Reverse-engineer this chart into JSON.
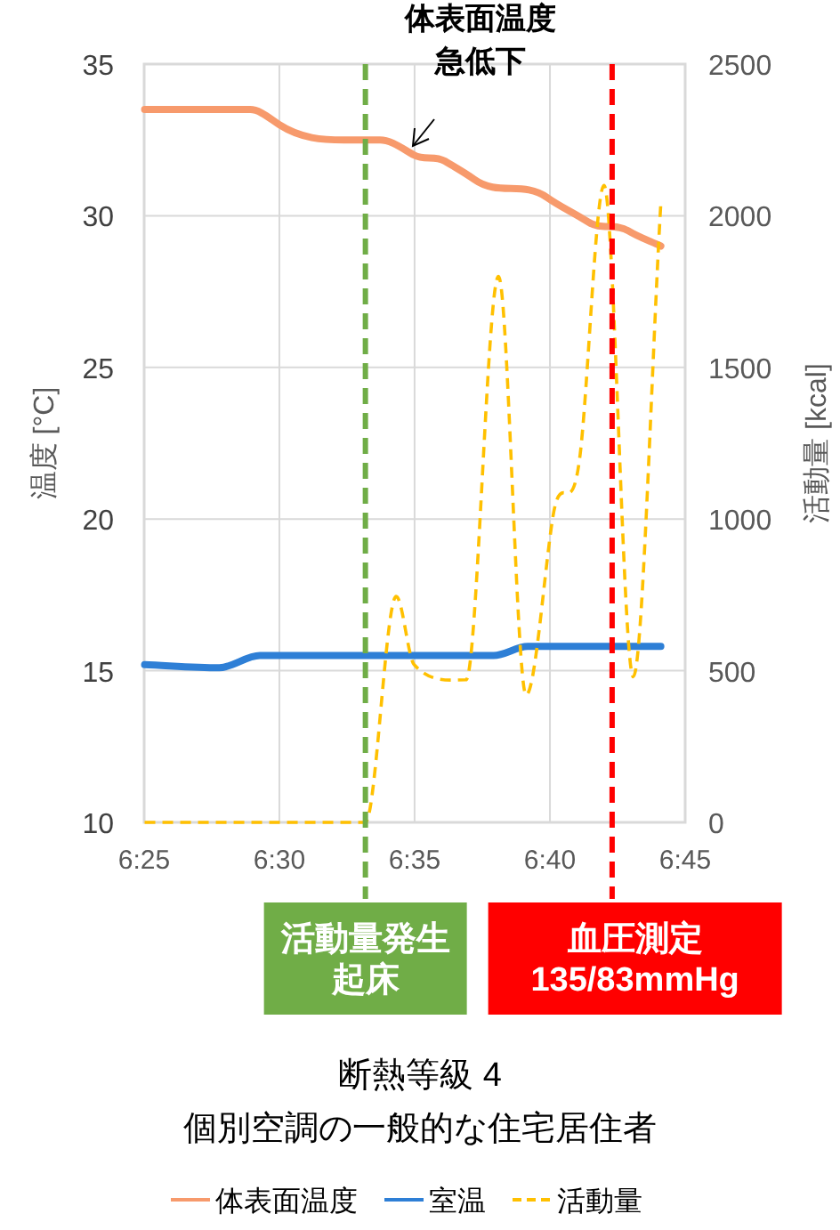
{
  "chart_data": {
    "type": "line",
    "title": "断熱等級 4",
    "subtitle": "個別空調の一般的な住宅居住者",
    "ylabel": "温度 [°C]",
    "y2label": "活動量 [kcal]",
    "series": [
      {
        "name": "体表面温度",
        "color": "#f79a6c",
        "x": [
          6.417,
          6.482,
          6.5,
          6.54,
          6.562,
          6.583,
          6.602,
          6.62,
          6.665,
          6.69,
          6.715,
          6.735
        ],
        "values": [
          33.5,
          33.5,
          33.0,
          32.5,
          32.5,
          32.0,
          31.8,
          31.2,
          30.6,
          29.8,
          29.5,
          29.0
        ]
      },
      {
        "name": "室温",
        "color": "#2e7fd6",
        "x": [
          6.417,
          6.463,
          6.488,
          6.632,
          6.653,
          6.735
        ],
        "values": [
          15.2,
          15.1,
          15.5,
          15.5,
          15.8,
          15.8
        ]
      },
      {
        "name": "活動量",
        "color": "#ffc000",
        "axis": "y2",
        "line_style": "dashed",
        "x": [
          6.417,
          6.54,
          6.553,
          6.572,
          6.583,
          6.615,
          6.635,
          6.652,
          6.668,
          6.685,
          6.7,
          6.718,
          6.735
        ],
        "values": [
          0,
          0,
          0,
          745,
          520,
          470,
          1800,
          420,
          990,
          1200,
          2100,
          480,
          2040
        ]
      }
    ],
    "xlim": [
      6.4167,
      6.75
    ],
    "xticks": [
      {
        "value": 6.4167,
        "label": "6:25"
      },
      {
        "value": 6.5,
        "label": "6:30"
      },
      {
        "value": 6.5833,
        "label": "6:35"
      },
      {
        "value": 6.6667,
        "label": "6:40"
      },
      {
        "value": 6.75,
        "label": "6:45"
      }
    ],
    "ylim": [
      10,
      35
    ],
    "yticks": [
      10,
      15,
      20,
      25,
      30,
      35
    ],
    "y2lim": [
      0,
      2500
    ],
    "y2ticks": [
      0,
      500,
      1000,
      1500,
      2000,
      2500
    ],
    "ref_lines": [
      {
        "axis": "x",
        "value": 6.553,
        "label": [
          "活動量発生",
          "起床"
        ],
        "color": "#70ad47",
        "line_style": "dashed"
      },
      {
        "axis": "x",
        "value": 6.705,
        "label": [
          "血圧測定",
          "135/83mmHg"
        ],
        "color": "#ff0000",
        "line_style": "dashed"
      }
    ],
    "annotations": [
      "体表面温度",
      "急低下"
    ],
    "grid": true,
    "legend": "bottom"
  }
}
